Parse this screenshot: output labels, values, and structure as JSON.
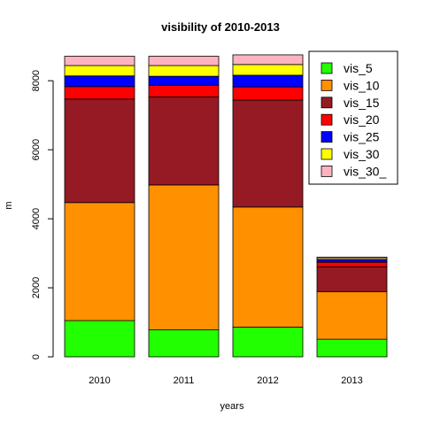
{
  "chart_data": {
    "type": "bar",
    "stacked": true,
    "title": "visibility of 2010-2013",
    "xlabel": "years",
    "ylabel": "m",
    "ylim": [
      0,
      8800
    ],
    "yticks": [
      "0",
      "2000",
      "4000",
      "6000",
      "8000"
    ],
    "categories": [
      "2010",
      "2011",
      "2012",
      "2013"
    ],
    "legend_position": "top-right",
    "series": [
      {
        "name": "vis_5",
        "color": "#22ff00",
        "values": [
          1050,
          780,
          860,
          510
        ]
      },
      {
        "name": "vis_10",
        "color": "#ff9000",
        "values": [
          3420,
          4200,
          3480,
          1380
        ]
      },
      {
        "name": "vis_15",
        "color": "#951a24",
        "values": [
          3000,
          2550,
          3100,
          720
        ]
      },
      {
        "name": "vis_20",
        "color": "#ff0000",
        "values": [
          360,
          340,
          380,
          130
        ]
      },
      {
        "name": "vis_25",
        "color": "#0000ff",
        "values": [
          310,
          260,
          340,
          70
        ]
      },
      {
        "name": "vis_30",
        "color": "#ffff00",
        "values": [
          300,
          310,
          310,
          40
        ]
      },
      {
        "name": "vis_30_",
        "color": "#ffb3c1",
        "values": [
          270,
          270,
          280,
          40
        ]
      }
    ]
  }
}
